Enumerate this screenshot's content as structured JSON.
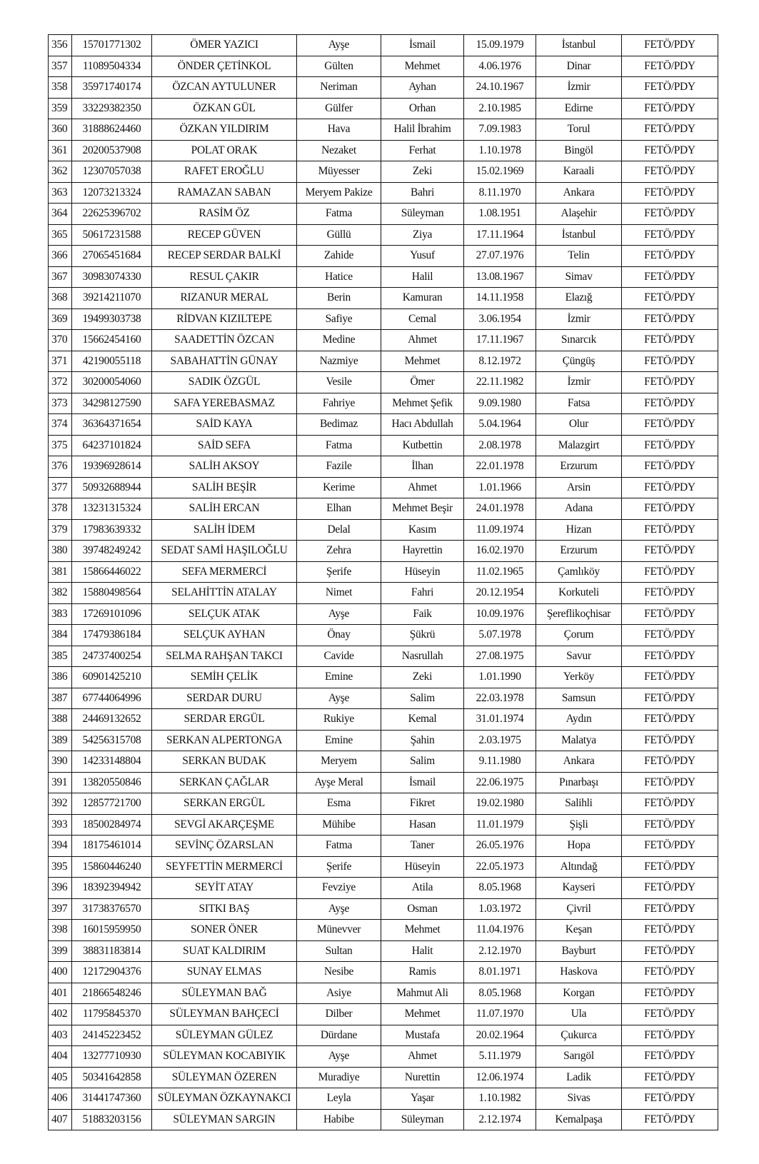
{
  "table": {
    "rows": [
      [
        "356",
        "15701771302",
        "ÖMER YAZICI",
        "Ayşe",
        "İsmail",
        "15.09.1979",
        "İstanbul",
        "FETÖ/PDY"
      ],
      [
        "357",
        "11089504334",
        "ÖNDER ÇETİNKOL",
        "Gülten",
        "Mehmet",
        "4.06.1976",
        "Dinar",
        "FETÖ/PDY"
      ],
      [
        "358",
        "35971740174",
        "ÖZCAN AYTULUNER",
        "Neriman",
        "Ayhan",
        "24.10.1967",
        "İzmir",
        "FETÖ/PDY"
      ],
      [
        "359",
        "33229382350",
        "ÖZKAN GÜL",
        "Gülfer",
        "Orhan",
        "2.10.1985",
        "Edirne",
        "FETÖ/PDY"
      ],
      [
        "360",
        "31888624460",
        "ÖZKAN YILDIRIM",
        "Hava",
        "Halil İbrahim",
        "7.09.1983",
        "Torul",
        "FETÖ/PDY"
      ],
      [
        "361",
        "20200537908",
        "POLAT ORAK",
        "Nezaket",
        "Ferhat",
        "1.10.1978",
        "Bingöl",
        "FETÖ/PDY"
      ],
      [
        "362",
        "12307057038",
        "RAFET EROĞLU",
        "Müyesser",
        "Zeki",
        "15.02.1969",
        "Karaali",
        "FETÖ/PDY"
      ],
      [
        "363",
        "12073213324",
        "RAMAZAN SABAN",
        "Meryem Pakize",
        "Bahri",
        "8.11.1970",
        "Ankara",
        "FETÖ/PDY"
      ],
      [
        "364",
        "22625396702",
        "RASİM ÖZ",
        "Fatma",
        "Süleyman",
        "1.08.1951",
        "Alaşehir",
        "FETÖ/PDY"
      ],
      [
        "365",
        "50617231588",
        "RECEP GÜVEN",
        "Güllü",
        "Ziya",
        "17.11.1964",
        "İstanbul",
        "FETÖ/PDY"
      ],
      [
        "366",
        "27065451684",
        "RECEP SERDAR BALKİ",
        "Zahide",
        "Yusuf",
        "27.07.1976",
        "Telin",
        "FETÖ/PDY"
      ],
      [
        "367",
        "30983074330",
        "RESUL ÇAKIR",
        "Hatice",
        "Halil",
        "13.08.1967",
        "Simav",
        "FETÖ/PDY"
      ],
      [
        "368",
        "39214211070",
        "RIZANUR MERAL",
        "Berin",
        "Kamuran",
        "14.11.1958",
        "Elazığ",
        "FETÖ/PDY"
      ],
      [
        "369",
        "19499303738",
        "RİDVAN KIZILTEPE",
        "Safiye",
        "Cemal",
        "3.06.1954",
        "İzmir",
        "FETÖ/PDY"
      ],
      [
        "370",
        "15662454160",
        "SAADETTİN ÖZCAN",
        "Medine",
        "Ahmet",
        "17.11.1967",
        "Sınarcık",
        "FETÖ/PDY"
      ],
      [
        "371",
        "42190055118",
        "SABAHATTİN GÜNAY",
        "Nazmiye",
        "Mehmet",
        "8.12.1972",
        "Çüngüş",
        "FETÖ/PDY"
      ],
      [
        "372",
        "30200054060",
        "SADIK ÖZGÜL",
        "Vesile",
        "Ömer",
        "22.11.1982",
        "İzmir",
        "FETÖ/PDY"
      ],
      [
        "373",
        "34298127590",
        "SAFA YEREBASMAZ",
        "Fahriye",
        "Mehmet Şefik",
        "9.09.1980",
        "Fatsa",
        "FETÖ/PDY"
      ],
      [
        "374",
        "36364371654",
        "SAİD KAYA",
        "Bedimaz",
        "Hacı Abdullah",
        "5.04.1964",
        "Olur",
        "FETÖ/PDY"
      ],
      [
        "375",
        "64237101824",
        "SAİD SEFA",
        "Fatma",
        "Kutbettin",
        "2.08.1978",
        "Malazgirt",
        "FETÖ/PDY"
      ],
      [
        "376",
        "19396928614",
        "SALİH AKSOY",
        "Fazile",
        "İlhan",
        "22.01.1978",
        "Erzurum",
        "FETÖ/PDY"
      ],
      [
        "377",
        "50932688944",
        "SALİH BEŞİR",
        "Kerime",
        "Ahmet",
        "1.01.1966",
        "Arsin",
        "FETÖ/PDY"
      ],
      [
        "378",
        "13231315324",
        "SALİH ERCAN",
        "Elhan",
        "Mehmet Beşir",
        "24.01.1978",
        "Adana",
        "FETÖ/PDY"
      ],
      [
        "379",
        "17983639332",
        "SALİH İDEM",
        "Delal",
        "Kasım",
        "11.09.1974",
        "Hizan",
        "FETÖ/PDY"
      ],
      [
        "380",
        "39748249242",
        "SEDAT SAMİ HAŞILOĞLU",
        "Zehra",
        "Hayrettin",
        "16.02.1970",
        "Erzurum",
        "FETÖ/PDY"
      ],
      [
        "381",
        "15866446022",
        "SEFA MERMERCİ",
        "Şerife",
        "Hüseyin",
        "11.02.1965",
        "Çamlıköy",
        "FETÖ/PDY"
      ],
      [
        "382",
        "15880498564",
        "SELAHİTTİN ATALAY",
        "Nimet",
        "Fahri",
        "20.12.1954",
        "Korkuteli",
        "FETÖ/PDY"
      ],
      [
        "383",
        "17269101096",
        "SELÇUK ATAK",
        "Ayşe",
        "Faik",
        "10.09.1976",
        "Şereflikoçhisar",
        "FETÖ/PDY"
      ],
      [
        "384",
        "17479386184",
        "SELÇUK AYHAN",
        "Önay",
        "Şükrü",
        "5.07.1978",
        "Çorum",
        "FETÖ/PDY"
      ],
      [
        "385",
        "24737400254",
        "SELMA RAHŞAN TAKCI",
        "Cavide",
        "Nasrullah",
        "27.08.1975",
        "Savur",
        "FETÖ/PDY"
      ],
      [
        "386",
        "60901425210",
        "SEMİH ÇELİK",
        "Emine",
        "Zeki",
        "1.01.1990",
        "Yerköy",
        "FETÖ/PDY"
      ],
      [
        "387",
        "67744064996",
        "SERDAR DURU",
        "Ayşe",
        "Salim",
        "22.03.1978",
        "Samsun",
        "FETÖ/PDY"
      ],
      [
        "388",
        "24469132652",
        "SERDAR ERGÜL",
        "Rukiye",
        "Kemal",
        "31.01.1974",
        "Aydın",
        "FETÖ/PDY"
      ],
      [
        "389",
        "54256315708",
        "SERKAN ALPERTONGA",
        "Emine",
        "Şahin",
        "2.03.1975",
        "Malatya",
        "FETÖ/PDY"
      ],
      [
        "390",
        "14233148804",
        "SERKAN BUDAK",
        "Meryem",
        "Salim",
        "9.11.1980",
        "Ankara",
        "FETÖ/PDY"
      ],
      [
        "391",
        "13820550846",
        "SERKAN ÇAĞLAR",
        "Ayşe Meral",
        "İsmail",
        "22.06.1975",
        "Pınarbaşı",
        "FETÖ/PDY"
      ],
      [
        "392",
        "12857721700",
        "SERKAN ERGÜL",
        "Esma",
        "Fikret",
        "19.02.1980",
        "Salihli",
        "FETÖ/PDY"
      ],
      [
        "393",
        "18500284974",
        "SEVGİ AKARÇEŞME",
        "Mühibe",
        "Hasan",
        "11.01.1979",
        "Şişli",
        "FETÖ/PDY"
      ],
      [
        "394",
        "18175461014",
        "SEVİNÇ ÖZARSLAN",
        "Fatma",
        "Taner",
        "26.05.1976",
        "Hopa",
        "FETÖ/PDY"
      ],
      [
        "395",
        "15860446240",
        "SEYFETTİN MERMERCİ",
        "Şerife",
        "Hüseyin",
        "22.05.1973",
        "Altındağ",
        "FETÖ/PDY"
      ],
      [
        "396",
        "18392394942",
        "SEYİT ATAY",
        "Fevziye",
        "Atila",
        "8.05.1968",
        "Kayseri",
        "FETÖ/PDY"
      ],
      [
        "397",
        "31738376570",
        "SITKI BAŞ",
        "Ayşe",
        "Osman",
        "1.03.1972",
        "Çivril",
        "FETÖ/PDY"
      ],
      [
        "398",
        "16015959950",
        "SONER ÖNER",
        "Münevver",
        "Mehmet",
        "11.04.1976",
        "Keşan",
        "FETÖ/PDY"
      ],
      [
        "399",
        "38831183814",
        "SUAT KALDIRIM",
        "Sultan",
        "Halit",
        "2.12.1970",
        "Bayburt",
        "FETÖ/PDY"
      ],
      [
        "400",
        "12172904376",
        "SUNAY ELMAS",
        "Nesibe",
        "Ramis",
        "8.01.1971",
        "Haskova",
        "FETÖ/PDY"
      ],
      [
        "401",
        "21866548246",
        "SÜLEYMAN BAĞ",
        "Asiye",
        "Mahmut Ali",
        "8.05.1968",
        "Korgan",
        "FETÖ/PDY"
      ],
      [
        "402",
        "11795845370",
        "SÜLEYMAN BAHÇECİ",
        "Dilber",
        "Mehmet",
        "11.07.1970",
        "Ula",
        "FETÖ/PDY"
      ],
      [
        "403",
        "24145223452",
        "SÜLEYMAN GÜLEZ",
        "Dürdane",
        "Mustafa",
        "20.02.1964",
        "Çukurca",
        "FETÖ/PDY"
      ],
      [
        "404",
        "13277710930",
        "SÜLEYMAN KOCABIYIK",
        "Ayşe",
        "Ahmet",
        "5.11.1979",
        "Sarıgöl",
        "FETÖ/PDY"
      ],
      [
        "405",
        "50341642858",
        "SÜLEYMAN ÖZEREN",
        "Muradiye",
        "Nurettin",
        "12.06.1974",
        "Ladik",
        "FETÖ/PDY"
      ],
      [
        "406",
        "31441747360",
        "SÜLEYMAN ÖZKAYNAKCI",
        "Leyla",
        "Yaşar",
        "1.10.1982",
        "Sivas",
        "FETÖ/PDY"
      ],
      [
        "407",
        "51883203156",
        "SÜLEYMAN SARGIN",
        "Habibe",
        "Süleyman",
        "2.12.1974",
        "Kemalpaşa",
        "FETÖ/PDY"
      ]
    ]
  }
}
